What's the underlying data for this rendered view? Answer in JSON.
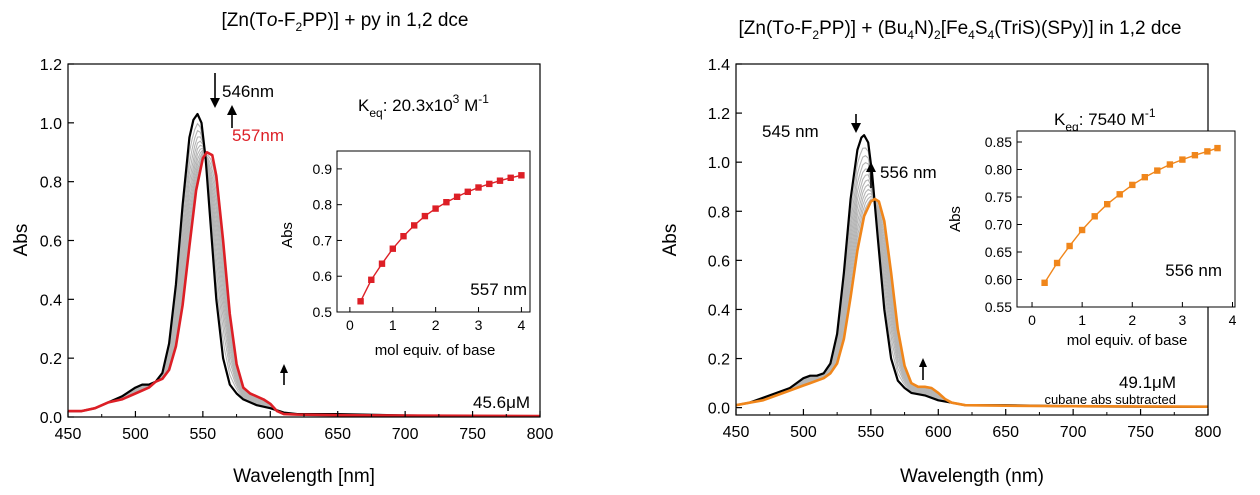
{
  "chart_data": [
    {
      "type": "line",
      "title_parts": {
        "a": "[Zn(T",
        "b": "o",
        "c": "-F",
        "d": "2",
        "e": "PP)] + py in 1,2 dce"
      },
      "xlabel": "Wavelength [nm]",
      "ylabel": "Abs",
      "xlim": [
        450,
        800
      ],
      "ylim": [
        0,
        1.2
      ],
      "xticks": [
        "450",
        "500",
        "550",
        "600",
        "650",
        "700",
        "750",
        "800"
      ],
      "yticks": [
        "0.0",
        "0.2",
        "0.4",
        "0.6",
        "0.8",
        "1.0",
        "1.2"
      ],
      "series": [
        {
          "role": "initial",
          "color": "#000000",
          "x": [
            450,
            460,
            470,
            480,
            490,
            500,
            505,
            510,
            515,
            520,
            525,
            530,
            535,
            540,
            543,
            546,
            549,
            552,
            555,
            560,
            565,
            570,
            575,
            580,
            590,
            600,
            610,
            620,
            650,
            700,
            750,
            800
          ],
          "y": [
            0.02,
            0.02,
            0.03,
            0.05,
            0.07,
            0.1,
            0.11,
            0.11,
            0.12,
            0.15,
            0.25,
            0.45,
            0.72,
            0.95,
            1.01,
            1.03,
            1.0,
            0.88,
            0.7,
            0.4,
            0.2,
            0.11,
            0.08,
            0.06,
            0.04,
            0.03,
            0.015,
            0.01,
            0.01,
            0.005,
            0.003,
            0.003
          ]
        },
        {
          "role": "final",
          "color": "#dd1f26",
          "x": [
            450,
            460,
            470,
            480,
            490,
            500,
            505,
            510,
            515,
            520,
            525,
            530,
            535,
            540,
            545,
            550,
            553,
            557,
            560,
            565,
            570,
            575,
            580,
            585,
            590,
            595,
            600,
            605,
            610,
            620,
            650,
            700,
            750,
            800
          ],
          "y": [
            0.02,
            0.02,
            0.03,
            0.05,
            0.06,
            0.08,
            0.09,
            0.1,
            0.12,
            0.13,
            0.16,
            0.24,
            0.38,
            0.58,
            0.77,
            0.88,
            0.9,
            0.89,
            0.82,
            0.6,
            0.35,
            0.18,
            0.1,
            0.08,
            0.07,
            0.06,
            0.045,
            0.02,
            0.01,
            0.008,
            0.006,
            0.005,
            0.004,
            0.003
          ]
        }
      ],
      "annotations": {
        "peak1": "546nm",
        "peak2": "557nm",
        "keq_k": "K",
        "keq_sub": "eq",
        "keq_val": ": 20.3x10",
        "keq_exp": "3",
        "keq_unit": " M",
        "keq_unit_exp": "-1",
        "concentration": "45.6μM"
      },
      "inset": {
        "type": "scatter-line",
        "color": "#dd1f26",
        "xlabel": "mol equiv. of base",
        "ylabel": "Abs",
        "label": "557 nm",
        "xlim": [
          -0.3,
          4.2
        ],
        "ylim": [
          0.5,
          0.95
        ],
        "xticks": [
          "0",
          "1",
          "2",
          "3",
          "4"
        ],
        "yticks": [
          "0.5",
          "0.6",
          "0.7",
          "0.8",
          "0.9"
        ],
        "x": [
          0.25,
          0.5,
          0.75,
          1.0,
          1.25,
          1.5,
          1.75,
          2.0,
          2.25,
          2.5,
          2.75,
          3.0,
          3.25,
          3.5,
          3.75,
          4.0
        ],
        "y": [
          0.53,
          0.59,
          0.635,
          0.677,
          0.712,
          0.742,
          0.768,
          0.789,
          0.807,
          0.822,
          0.836,
          0.848,
          0.858,
          0.867,
          0.875,
          0.882
        ]
      }
    },
    {
      "type": "line",
      "title_parts": {
        "a": "[Zn(T",
        "b": "o",
        "c": "-F",
        "d": "2",
        "e": "PP)] + (Bu",
        "f": "4",
        "g": "N)",
        "h": "2",
        "i": "[Fe",
        "j": "4",
        "k": "S",
        "l": "4",
        "m": "(TriS)(SPy)] in 1,2 dce"
      },
      "xlabel": "Wavelength (nm)",
      "ylabel": "Abs",
      "xlim": [
        450,
        800
      ],
      "ylim": [
        -0.03,
        1.4
      ],
      "xticks": [
        "450",
        "500",
        "550",
        "600",
        "650",
        "700",
        "750",
        "800"
      ],
      "yticks": [
        "0.0",
        "0.2",
        "0.4",
        "0.6",
        "0.8",
        "1.0",
        "1.2",
        "1.4"
      ],
      "series": [
        {
          "role": "initial",
          "color": "#000000",
          "x": [
            450,
            460,
            470,
            480,
            490,
            500,
            505,
            510,
            515,
            520,
            525,
            530,
            535,
            540,
            543,
            545,
            548,
            551,
            555,
            560,
            565,
            570,
            575,
            580,
            590,
            600,
            610,
            620,
            650,
            700,
            750,
            800
          ],
          "y": [
            0.01,
            0.02,
            0.04,
            0.06,
            0.08,
            0.12,
            0.13,
            0.13,
            0.14,
            0.18,
            0.3,
            0.55,
            0.85,
            1.05,
            1.1,
            1.11,
            1.08,
            0.95,
            0.7,
            0.4,
            0.2,
            0.11,
            0.08,
            0.06,
            0.05,
            0.03,
            0.02,
            0.01,
            0.01,
            0.005,
            0.004,
            0.003
          ]
        },
        {
          "role": "final",
          "color": "#f0861b",
          "x": [
            450,
            460,
            470,
            480,
            490,
            500,
            505,
            510,
            515,
            520,
            525,
            530,
            535,
            540,
            545,
            550,
            553,
            556,
            560,
            565,
            570,
            575,
            580,
            585,
            590,
            595,
            600,
            605,
            610,
            620,
            650,
            700,
            750,
            800
          ],
          "y": [
            0.01,
            0.02,
            0.03,
            0.05,
            0.07,
            0.09,
            0.1,
            0.11,
            0.12,
            0.14,
            0.18,
            0.28,
            0.45,
            0.64,
            0.78,
            0.84,
            0.85,
            0.84,
            0.76,
            0.55,
            0.32,
            0.17,
            0.1,
            0.085,
            0.085,
            0.08,
            0.06,
            0.035,
            0.02,
            0.01,
            0.008,
            0.006,
            0.005,
            0.004
          ]
        }
      ],
      "annotations": {
        "peak1": "545 nm",
        "peak2": "556 nm",
        "keq_k": "K",
        "keq_sub": "eq",
        "keq_val": ": 7540 M",
        "keq_unit_exp": "-1",
        "concentration": "49.1μM",
        "note": "cubane abs subtracted"
      },
      "inset": {
        "type": "scatter-line",
        "color": "#f0861b",
        "xlabel": "mol equiv. of base",
        "ylabel": "Abs",
        "label": "556 nm",
        "xlim": [
          -0.3,
          4.05
        ],
        "ylim": [
          0.55,
          0.87
        ],
        "xticks": [
          "0",
          "1",
          "2",
          "3",
          "4"
        ],
        "yticks": [
          "0.55",
          "0.60",
          "0.65",
          "0.70",
          "0.75",
          "0.80",
          "0.85"
        ],
        "x": [
          0.25,
          0.5,
          0.75,
          1.0,
          1.25,
          1.5,
          1.75,
          2.0,
          2.25,
          2.5,
          2.75,
          3.0,
          3.25,
          3.5,
          3.7
        ],
        "y": [
          0.594,
          0.63,
          0.661,
          0.69,
          0.715,
          0.737,
          0.755,
          0.772,
          0.786,
          0.798,
          0.809,
          0.818,
          0.826,
          0.833,
          0.839
        ]
      }
    }
  ]
}
